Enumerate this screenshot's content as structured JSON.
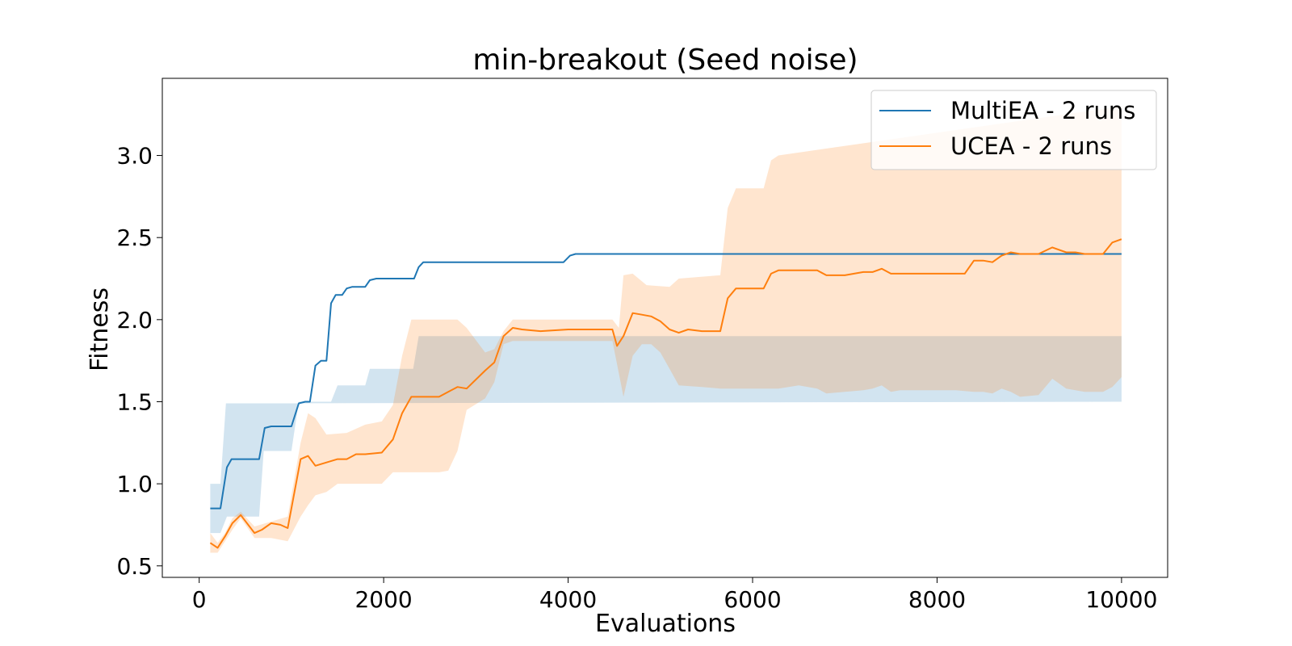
{
  "chart_data": {
    "type": "line",
    "title": "min-breakout (Seed noise)",
    "xlabel": "Evaluations",
    "ylabel": "Fitness",
    "xlim": [
      -400,
      10500
    ],
    "ylim": [
      0.43,
      3.47
    ],
    "xticks": [
      0,
      2000,
      4000,
      6000,
      8000,
      10000
    ],
    "xtick_labels": [
      "0",
      "2000",
      "4000",
      "6000",
      "8000",
      "10000"
    ],
    "yticks": [
      0.5,
      1.0,
      1.5,
      2.0,
      2.5,
      3.0
    ],
    "ytick_labels": [
      "0.5",
      "1.0",
      "1.5",
      "2.0",
      "2.5",
      "3.0"
    ],
    "grid": false,
    "legend_position": "upper right",
    "series": [
      {
        "name": "MultiEA - 2 runs",
        "color": "#1f77b4",
        "band_color": "#1f77b4",
        "points": [
          [
            120,
            0.85
          ],
          [
            230,
            0.85
          ],
          [
            300,
            1.1
          ],
          [
            350,
            1.15
          ],
          [
            650,
            1.15
          ],
          [
            710,
            1.34
          ],
          [
            780,
            1.35
          ],
          [
            1000,
            1.35
          ],
          [
            1080,
            1.49
          ],
          [
            1150,
            1.5
          ],
          [
            1200,
            1.5
          ],
          [
            1260,
            1.72
          ],
          [
            1320,
            1.75
          ],
          [
            1380,
            1.75
          ],
          [
            1430,
            2.1
          ],
          [
            1480,
            2.15
          ],
          [
            1550,
            2.15
          ],
          [
            1600,
            2.19
          ],
          [
            1660,
            2.2
          ],
          [
            1800,
            2.2
          ],
          [
            1850,
            2.24
          ],
          [
            1920,
            2.25
          ],
          [
            2330,
            2.25
          ],
          [
            2380,
            2.32
          ],
          [
            2430,
            2.35
          ],
          [
            3950,
            2.35
          ],
          [
            4020,
            2.39
          ],
          [
            4080,
            2.4
          ],
          [
            10000,
            2.4
          ]
        ],
        "band_upper": [
          [
            120,
            1.0
          ],
          [
            230,
            1.0
          ],
          [
            290,
            1.49
          ],
          [
            10000,
            1.5
          ]
        ],
        "band_lower": [
          [
            120,
            0.7
          ],
          [
            230,
            0.7
          ],
          [
            300,
            0.8
          ],
          [
            650,
            0.8
          ],
          [
            700,
            1.2
          ],
          [
            1000,
            1.2
          ],
          [
            1080,
            1.5
          ],
          [
            1430,
            1.5
          ],
          [
            1500,
            1.6
          ],
          [
            1800,
            1.6
          ],
          [
            1850,
            1.7
          ],
          [
            2320,
            1.7
          ],
          [
            2380,
            1.9
          ],
          [
            10000,
            1.9
          ]
        ]
      },
      {
        "name": "UCEA - 2 runs",
        "color": "#ff7f0e",
        "band_color": "#ff7f0e",
        "points": [
          [
            120,
            0.64
          ],
          [
            200,
            0.61
          ],
          [
            280,
            0.68
          ],
          [
            360,
            0.76
          ],
          [
            450,
            0.81
          ],
          [
            600,
            0.7
          ],
          [
            680,
            0.72
          ],
          [
            780,
            0.76
          ],
          [
            880,
            0.75
          ],
          [
            960,
            0.73
          ],
          [
            1100,
            1.15
          ],
          [
            1180,
            1.17
          ],
          [
            1260,
            1.11
          ],
          [
            1380,
            1.13
          ],
          [
            1500,
            1.15
          ],
          [
            1600,
            1.15
          ],
          [
            1700,
            1.18
          ],
          [
            1800,
            1.18
          ],
          [
            1980,
            1.19
          ],
          [
            2100,
            1.27
          ],
          [
            2200,
            1.43
          ],
          [
            2300,
            1.53
          ],
          [
            2450,
            1.53
          ],
          [
            2600,
            1.53
          ],
          [
            2700,
            1.56
          ],
          [
            2800,
            1.59
          ],
          [
            2900,
            1.58
          ],
          [
            3100,
            1.69
          ],
          [
            3200,
            1.74
          ],
          [
            3300,
            1.9
          ],
          [
            3400,
            1.95
          ],
          [
            3500,
            1.94
          ],
          [
            3700,
            1.93
          ],
          [
            4000,
            1.94
          ],
          [
            4200,
            1.94
          ],
          [
            4480,
            1.94
          ],
          [
            4530,
            1.84
          ],
          [
            4600,
            1.9
          ],
          [
            4700,
            2.04
          ],
          [
            4800,
            2.03
          ],
          [
            4900,
            2.02
          ],
          [
            5000,
            1.99
          ],
          [
            5100,
            1.94
          ],
          [
            5200,
            1.92
          ],
          [
            5300,
            1.94
          ],
          [
            5450,
            1.93
          ],
          [
            5650,
            1.93
          ],
          [
            5730,
            2.13
          ],
          [
            5820,
            2.19
          ],
          [
            5950,
            2.19
          ],
          [
            6120,
            2.19
          ],
          [
            6200,
            2.28
          ],
          [
            6280,
            2.3
          ],
          [
            6500,
            2.3
          ],
          [
            6700,
            2.3
          ],
          [
            6800,
            2.27
          ],
          [
            7000,
            2.27
          ],
          [
            7200,
            2.29
          ],
          [
            7300,
            2.29
          ],
          [
            7400,
            2.31
          ],
          [
            7500,
            2.28
          ],
          [
            7600,
            2.28
          ],
          [
            7800,
            2.28
          ],
          [
            8000,
            2.28
          ],
          [
            8200,
            2.28
          ],
          [
            8300,
            2.28
          ],
          [
            8400,
            2.36
          ],
          [
            8500,
            2.36
          ],
          [
            8600,
            2.35
          ],
          [
            8700,
            2.39
          ],
          [
            8800,
            2.41
          ],
          [
            8900,
            2.4
          ],
          [
            9100,
            2.4
          ],
          [
            9250,
            2.44
          ],
          [
            9400,
            2.41
          ],
          [
            9500,
            2.41
          ],
          [
            9600,
            2.4
          ],
          [
            9800,
            2.4
          ],
          [
            9900,
            2.47
          ],
          [
            10000,
            2.49
          ]
        ],
        "band_upper": [
          [
            120,
            0.7
          ],
          [
            200,
            0.64
          ],
          [
            280,
            0.7
          ],
          [
            360,
            0.79
          ],
          [
            450,
            0.83
          ],
          [
            600,
            0.74
          ],
          [
            780,
            0.77
          ],
          [
            960,
            0.8
          ],
          [
            1100,
            1.25
          ],
          [
            1180,
            1.43
          ],
          [
            1260,
            1.4
          ],
          [
            1380,
            1.3
          ],
          [
            1600,
            1.31
          ],
          [
            1800,
            1.36
          ],
          [
            1980,
            1.38
          ],
          [
            2100,
            1.48
          ],
          [
            2200,
            1.78
          ],
          [
            2300,
            2.0
          ],
          [
            2800,
            2.0
          ],
          [
            2900,
            1.95
          ],
          [
            3100,
            1.8
          ],
          [
            3200,
            1.82
          ],
          [
            3300,
            1.93
          ],
          [
            3400,
            2.0
          ],
          [
            4480,
            2.0
          ],
          [
            4550,
            1.95
          ],
          [
            4600,
            2.27
          ],
          [
            4700,
            2.28
          ],
          [
            4850,
            2.21
          ],
          [
            5100,
            2.2
          ],
          [
            5200,
            2.25
          ],
          [
            5650,
            2.27
          ],
          [
            5730,
            2.68
          ],
          [
            5820,
            2.8
          ],
          [
            6120,
            2.8
          ],
          [
            6200,
            2.97
          ],
          [
            6280,
            3.0
          ],
          [
            10000,
            3.3
          ]
        ],
        "band_lower": [
          [
            120,
            0.58
          ],
          [
            200,
            0.58
          ],
          [
            280,
            0.65
          ],
          [
            360,
            0.72
          ],
          [
            450,
            0.79
          ],
          [
            600,
            0.67
          ],
          [
            780,
            0.67
          ],
          [
            960,
            0.65
          ],
          [
            1100,
            0.8
          ],
          [
            1180,
            0.87
          ],
          [
            1260,
            0.93
          ],
          [
            1380,
            0.95
          ],
          [
            1500,
            1.0
          ],
          [
            1980,
            1.0
          ],
          [
            2100,
            1.07
          ],
          [
            2300,
            1.07
          ],
          [
            2600,
            1.07
          ],
          [
            2700,
            1.08
          ],
          [
            2800,
            1.2
          ],
          [
            2900,
            1.45
          ],
          [
            3100,
            1.52
          ],
          [
            3200,
            1.62
          ],
          [
            3300,
            1.85
          ],
          [
            3400,
            1.87
          ],
          [
            4480,
            1.87
          ],
          [
            4530,
            1.73
          ],
          [
            4600,
            1.53
          ],
          [
            4700,
            1.78
          ],
          [
            4800,
            1.85
          ],
          [
            4900,
            1.85
          ],
          [
            5000,
            1.8
          ],
          [
            5100,
            1.7
          ],
          [
            5200,
            1.6
          ],
          [
            5450,
            1.59
          ],
          [
            5650,
            1.58
          ],
          [
            6280,
            1.58
          ],
          [
            6500,
            1.6
          ],
          [
            6700,
            1.58
          ],
          [
            6800,
            1.55
          ],
          [
            7000,
            1.56
          ],
          [
            7200,
            1.57
          ],
          [
            7300,
            1.58
          ],
          [
            7400,
            1.6
          ],
          [
            7500,
            1.56
          ],
          [
            7600,
            1.57
          ],
          [
            7800,
            1.57
          ],
          [
            8200,
            1.57
          ],
          [
            8400,
            1.56
          ],
          [
            8500,
            1.56
          ],
          [
            8600,
            1.55
          ],
          [
            8700,
            1.58
          ],
          [
            8800,
            1.56
          ],
          [
            8900,
            1.53
          ],
          [
            9100,
            1.54
          ],
          [
            9250,
            1.64
          ],
          [
            9400,
            1.58
          ],
          [
            9500,
            1.57
          ],
          [
            9600,
            1.56
          ],
          [
            9800,
            1.56
          ],
          [
            9900,
            1.59
          ],
          [
            10000,
            1.65
          ]
        ]
      }
    ]
  }
}
